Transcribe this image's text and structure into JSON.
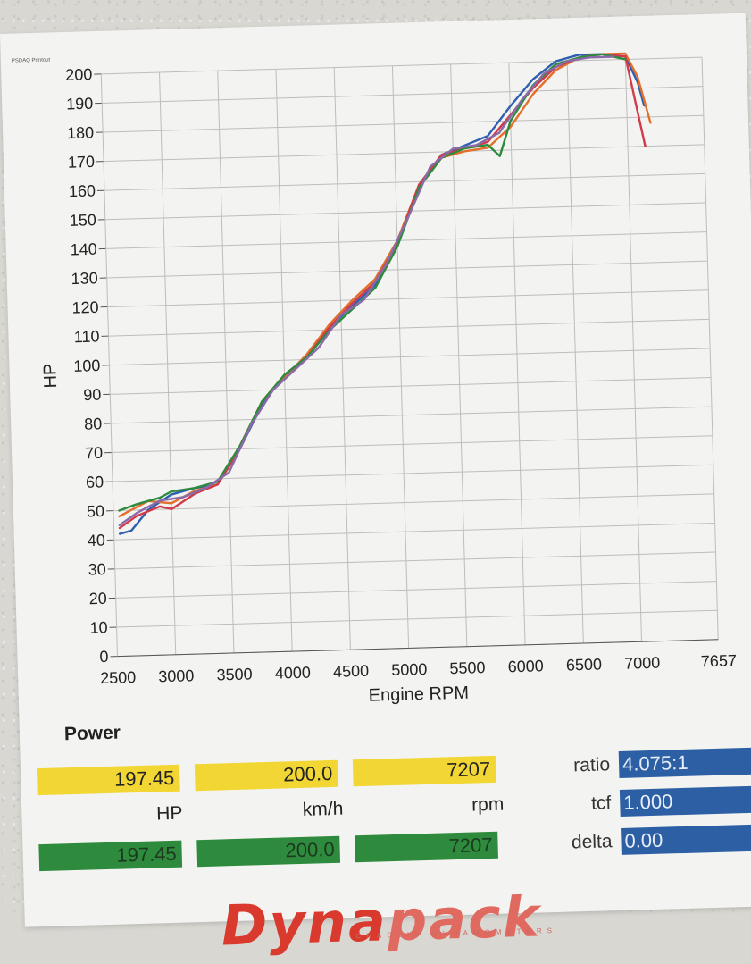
{
  "printout_tag": "PSDAQ Printout",
  "section_title": "Power",
  "readouts": {
    "power_value": "197.45",
    "speed_value": "200.0",
    "rpm_value": "7207",
    "power_unit": "HP",
    "speed_unit": "km/h",
    "rpm_unit": "rpm",
    "power_value_2": "197.45",
    "speed_value_2": "200.0",
    "rpm_value_2": "7207"
  },
  "params": {
    "ratio_label": "ratio",
    "ratio_value": "4.075:1",
    "tcf_label": "tcf",
    "tcf_value": "1.000",
    "delta_label": "delta",
    "delta_value": "0.00"
  },
  "logo": {
    "part1": "Dyna",
    "part2": "pack",
    "tagline": "CHASSIS DYNAMOMETERS"
  },
  "colors": {
    "yellow": "#f2d633",
    "green": "#2e8a3c",
    "blue": "#2c5fa3",
    "logo_red": "#d93a2d"
  },
  "chart_data": {
    "type": "line",
    "title": "",
    "xlabel": "Engine RPM",
    "ylabel": "HP",
    "xlim": [
      2500,
      7657
    ],
    "ylim": [
      0,
      200
    ],
    "x_ticks": [
      2500,
      3000,
      3500,
      4000,
      4500,
      5000,
      5500,
      6000,
      6500,
      7000,
      7657
    ],
    "y_ticks": [
      0,
      10,
      20,
      30,
      40,
      50,
      60,
      70,
      80,
      90,
      100,
      110,
      120,
      130,
      140,
      150,
      160,
      170,
      180,
      190,
      200
    ],
    "grid": true,
    "series": [
      {
        "color": "#2f5fb0",
        "x": [
          2550,
          2650,
          2800,
          3000,
          3200,
          3400,
          3600,
          3800,
          4000,
          4200,
          4400,
          4600,
          4800,
          5000,
          5200,
          5400,
          5600,
          5800,
          6000,
          6200,
          6400,
          6600,
          6800,
          7000,
          7100,
          7150
        ],
        "y": [
          42,
          43,
          50,
          55,
          57,
          58,
          70,
          85,
          95,
          101,
          111,
          118,
          125,
          139,
          159,
          169,
          172,
          175,
          185,
          194,
          200,
          202,
          202,
          201,
          192,
          184
        ]
      },
      {
        "color": "#e36f2a",
        "x": [
          2550,
          2650,
          2800,
          3000,
          3200,
          3400,
          3600,
          3800,
          4000,
          4200,
          4400,
          4600,
          4800,
          5000,
          5200,
          5400,
          5600,
          5800,
          6000,
          6200,
          6400,
          6600,
          6800,
          7000,
          7100,
          7200
        ],
        "y": [
          48,
          50,
          53,
          52,
          56,
          58,
          71,
          86,
          94,
          102,
          112,
          120,
          127,
          140,
          159,
          168,
          170,
          171,
          178,
          189,
          197,
          201,
          202,
          202,
          194,
          178
        ]
      },
      {
        "color": "#d23a4a",
        "x": [
          2550,
          2700,
          2900,
          3000,
          3200,
          3400,
          3600,
          3800,
          4000,
          4200,
          4400,
          4600,
          4800,
          5000,
          5200,
          5400,
          5600,
          5800,
          6000,
          6200,
          6400,
          6600,
          6800,
          7000,
          7150
        ],
        "y": [
          44,
          48,
          51,
          50,
          55,
          58,
          70,
          86,
          95,
          101,
          111,
          119,
          126,
          139,
          159,
          169,
          171,
          173,
          182,
          191,
          198,
          201,
          202,
          201,
          170
        ]
      },
      {
        "color": "#2e8a3c",
        "x": [
          2550,
          2700,
          2900,
          3000,
          3200,
          3400,
          3600,
          3800,
          4000,
          4200,
          4400,
          4600,
          4800,
          5000,
          5200,
          5400,
          5600,
          5800,
          5900,
          6000,
          6200,
          6400,
          6600,
          6800,
          7000
        ],
        "y": [
          50,
          52,
          54,
          56,
          57,
          59,
          71,
          86,
          95,
          101,
          110,
          117,
          124,
          138,
          158,
          168,
          171,
          172,
          168,
          180,
          192,
          199,
          201,
          202,
          200
        ]
      },
      {
        "color": "#8a6aa8",
        "x": [
          2550,
          2700,
          2900,
          3100,
          3300,
          3500,
          3700,
          3900,
          4100,
          4300,
          4500,
          4700,
          4900,
          5100,
          5300,
          5500,
          5700,
          5900,
          6100,
          6300,
          6500,
          6700,
          6900
        ],
        "y": [
          45,
          49,
          53,
          54,
          57,
          62,
          78,
          90,
          97,
          104,
          115,
          120,
          132,
          148,
          165,
          171,
          172,
          176,
          187,
          196,
          200,
          201,
          201
        ]
      }
    ]
  }
}
